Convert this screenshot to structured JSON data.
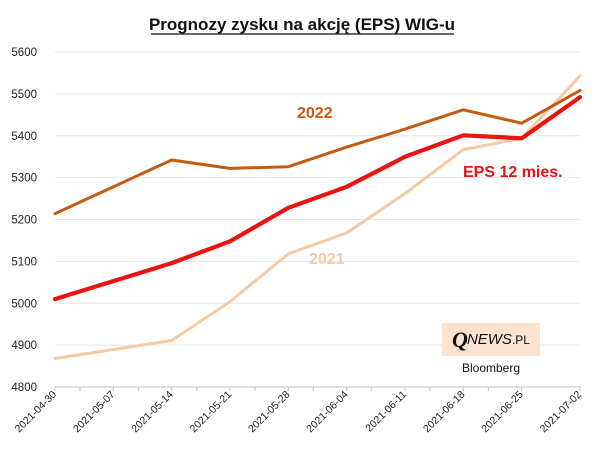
{
  "chart_data": {
    "type": "line",
    "title": "Prognozy zysku na akcję (EPS) WIG-u",
    "xlabel": "",
    "ylabel": "",
    "ylim": [
      4800,
      5600
    ],
    "yticks": [
      4800,
      4900,
      5000,
      5100,
      5200,
      5300,
      5400,
      5500,
      5600
    ],
    "categories": [
      "2021-04-30",
      "2021-05-07",
      "2021-05-14",
      "2021-05-21",
      "2021-05-28",
      "2021-06-04",
      "2021-06-11",
      "2021-06-18",
      "2021-06-25",
      "2021-07-02"
    ],
    "x_index": [
      0,
      3,
      7,
      10,
      14,
      17,
      21,
      24,
      28,
      31,
      35,
      38,
      42,
      45,
      49,
      52,
      56,
      63
    ],
    "grid": "horizontal",
    "series": [
      {
        "name": "2022",
        "color": "#c55a11",
        "points": [
          [
            0,
            5214
          ],
          [
            14,
            5342
          ],
          [
            21,
            5322
          ],
          [
            28,
            5326
          ],
          [
            35,
            5373
          ],
          [
            42,
            5416
          ],
          [
            49,
            5462
          ],
          [
            56,
            5430
          ],
          [
            63,
            5508
          ]
        ]
      },
      {
        "name": "EPS 12 mies.",
        "color": "#ee1111",
        "points": [
          [
            0,
            5010
          ],
          [
            14,
            5096
          ],
          [
            21,
            5148
          ],
          [
            28,
            5228
          ],
          [
            35,
            5278
          ],
          [
            42,
            5350
          ],
          [
            49,
            5401
          ],
          [
            56,
            5394
          ],
          [
            63,
            5492
          ]
        ]
      },
      {
        "name": "2021",
        "color": "#f7caa6",
        "points": [
          [
            0,
            4868
          ],
          [
            14,
            4911
          ],
          [
            21,
            5004
          ],
          [
            28,
            5118
          ],
          [
            35,
            5168
          ],
          [
            42,
            5262
          ],
          [
            49,
            5367
          ],
          [
            56,
            5394
          ],
          [
            63,
            5543
          ]
        ]
      }
    ]
  },
  "watermark": {
    "brand_q": "Q",
    "brand_news": "NEWS",
    "brand_tld": ".PL"
  },
  "source": "Bloomberg"
}
